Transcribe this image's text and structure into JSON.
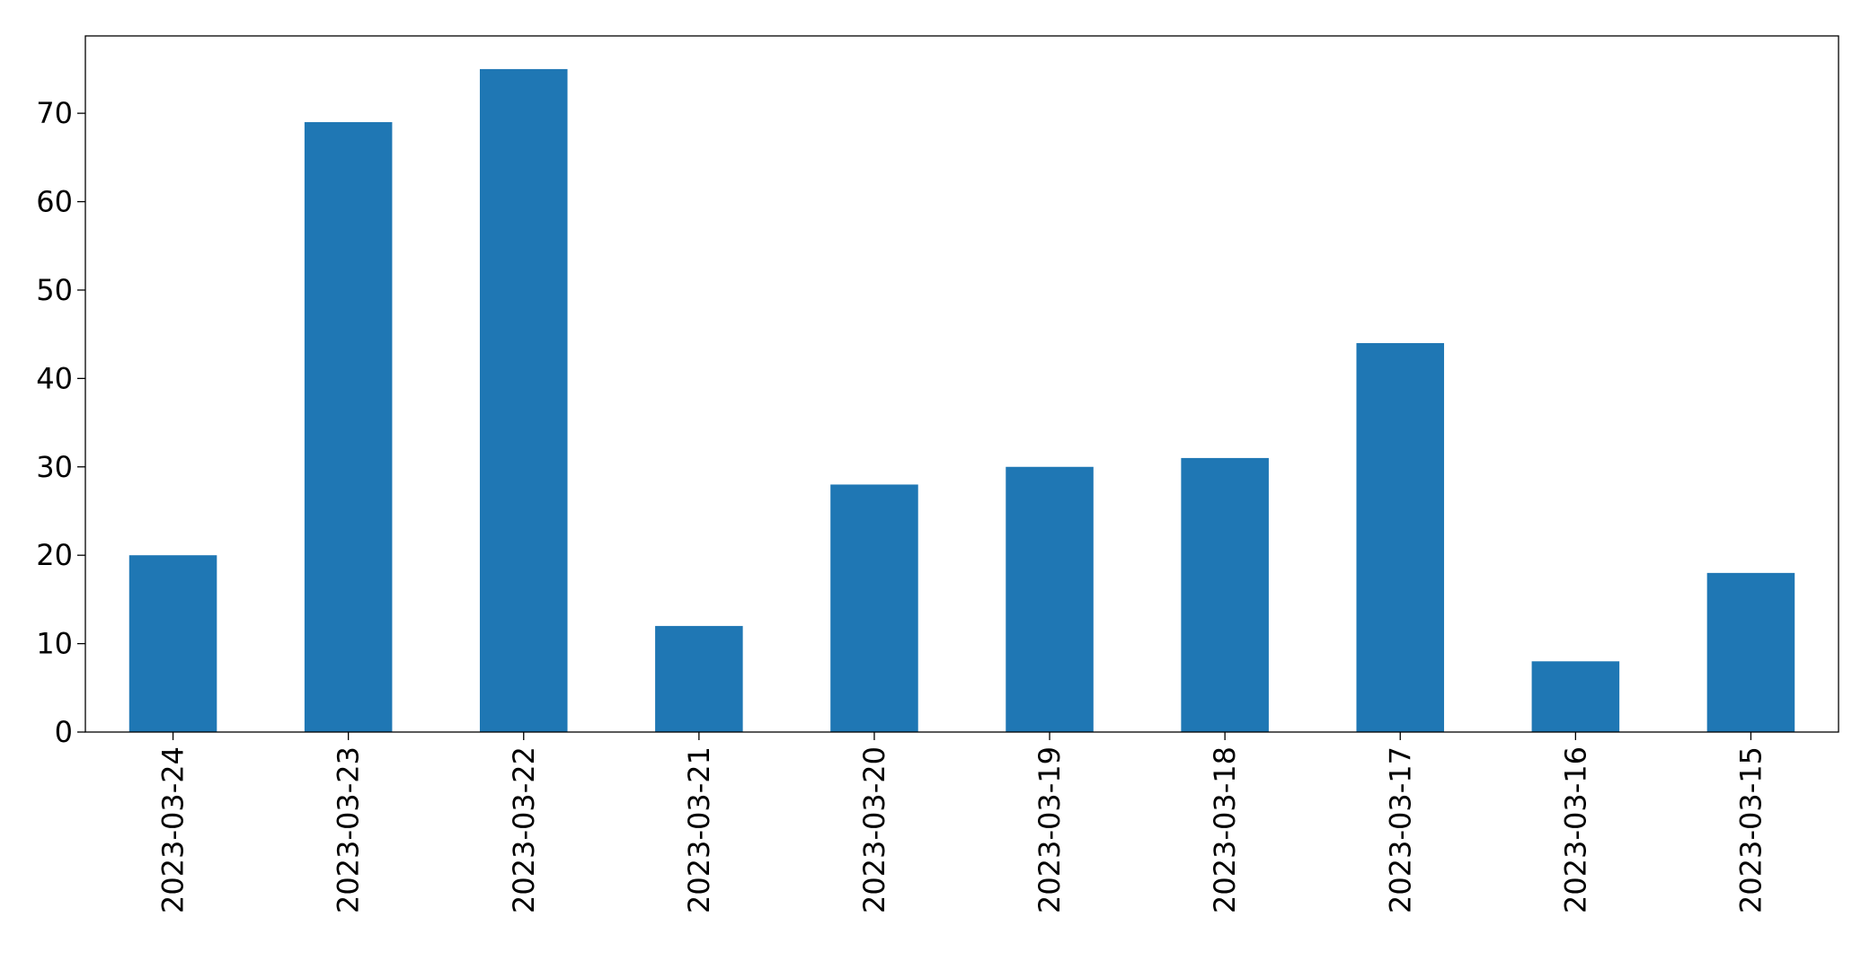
{
  "chart_data": {
    "type": "bar",
    "categories": [
      "2023-03-24",
      "2023-03-23",
      "2023-03-22",
      "2023-03-21",
      "2023-03-20",
      "2023-03-19",
      "2023-03-18",
      "2023-03-17",
      "2023-03-16",
      "2023-03-15"
    ],
    "series": [
      {
        "values": [
          20,
          69,
          75,
          12,
          28,
          30,
          31,
          44,
          8,
          18
        ]
      }
    ],
    "title": "",
    "xlabel": "",
    "ylabel": "",
    "ylim": [
      0,
      78.75
    ],
    "yticks": [
      0,
      10,
      20,
      30,
      40,
      50,
      60,
      70
    ],
    "grid": false,
    "legend": "none",
    "x_tick_rotation": "vertical",
    "colors": {
      "bar": "#1f77b4",
      "axis": "#000000",
      "background": "#ffffff"
    }
  }
}
